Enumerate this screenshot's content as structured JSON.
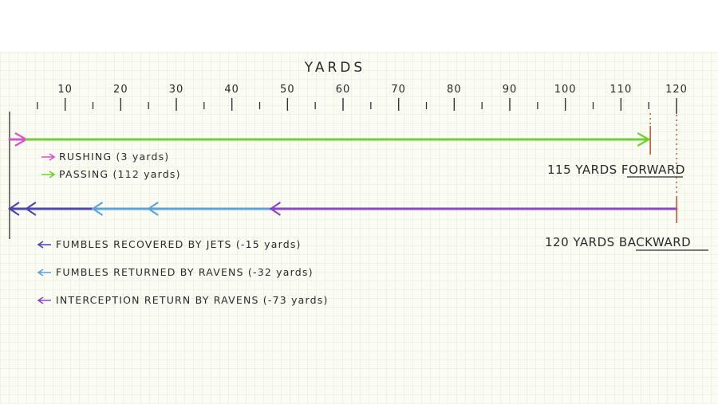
{
  "chart_data": {
    "type": "bar",
    "title": "YARDS",
    "xlim": [
      0,
      120
    ],
    "ticks": [
      10,
      20,
      30,
      40,
      50,
      60,
      70,
      80,
      90,
      100,
      110,
      120
    ],
    "grid": true,
    "forward": {
      "segments": [
        {
          "label": "RUSHING (3 yards)",
          "start": 0,
          "end": 3,
          "color": "#d653c8"
        },
        {
          "label": "PASSING (112 yards)",
          "start": 3,
          "end": 115,
          "color": "#6ed12f"
        }
      ],
      "total_label": "115 YARDS FORWARD",
      "total_value": 115,
      "marker_color": "#d9582f"
    },
    "backward": {
      "segments": [
        {
          "label": "FUMBLES RECOVERED BY JETS (-15 yards)",
          "start": 15,
          "end": 0,
          "color": "#4c47b0"
        },
        {
          "label": "FUMBLES RETURNED BY RAVENS (-32 yards)",
          "start": 47,
          "end": 15,
          "color": "#5aa3dd"
        },
        {
          "label": "INTERCEPTION RETURN BY RAVENS (-73 yards)",
          "start": 120,
          "end": 47,
          "color": "#8a46c9"
        }
      ],
      "total_label": "120 YARDS BACKWARD",
      "total_value": 120,
      "marker_color": "#d9582f"
    }
  }
}
